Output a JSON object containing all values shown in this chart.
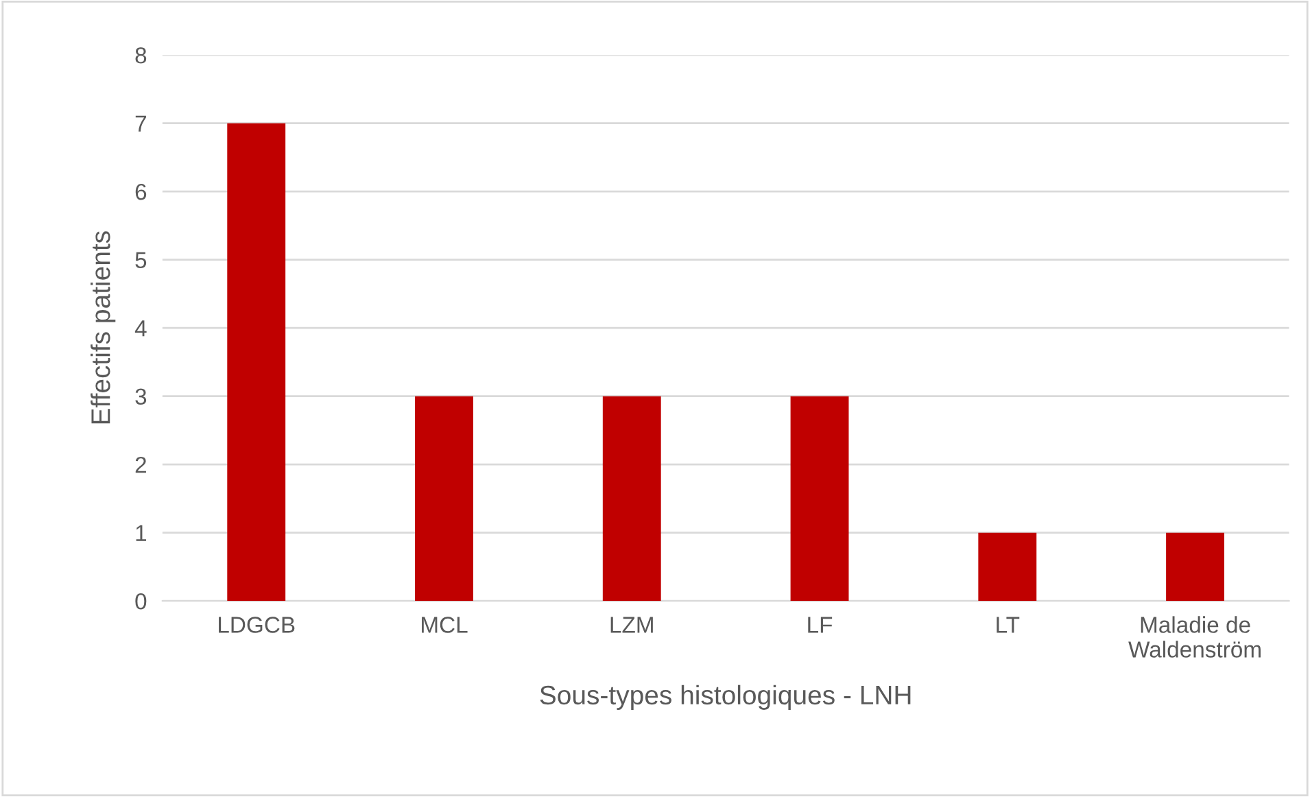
{
  "chart_data": {
    "type": "bar",
    "xlabel": "Sous-types histologiques - LNH",
    "ylabel": "Effectifs patients",
    "categories": [
      "LDGCB",
      "MCL",
      "LZM",
      "LF",
      "LT",
      "Maladie de\nWaldenström"
    ],
    "values": [
      7,
      3,
      3,
      3,
      1,
      1
    ],
    "color": "#c00000",
    "ylim": [
      0,
      8
    ],
    "yticks": [
      0,
      1,
      2,
      3,
      4,
      5,
      6,
      7,
      8
    ],
    "grid": "y"
  }
}
